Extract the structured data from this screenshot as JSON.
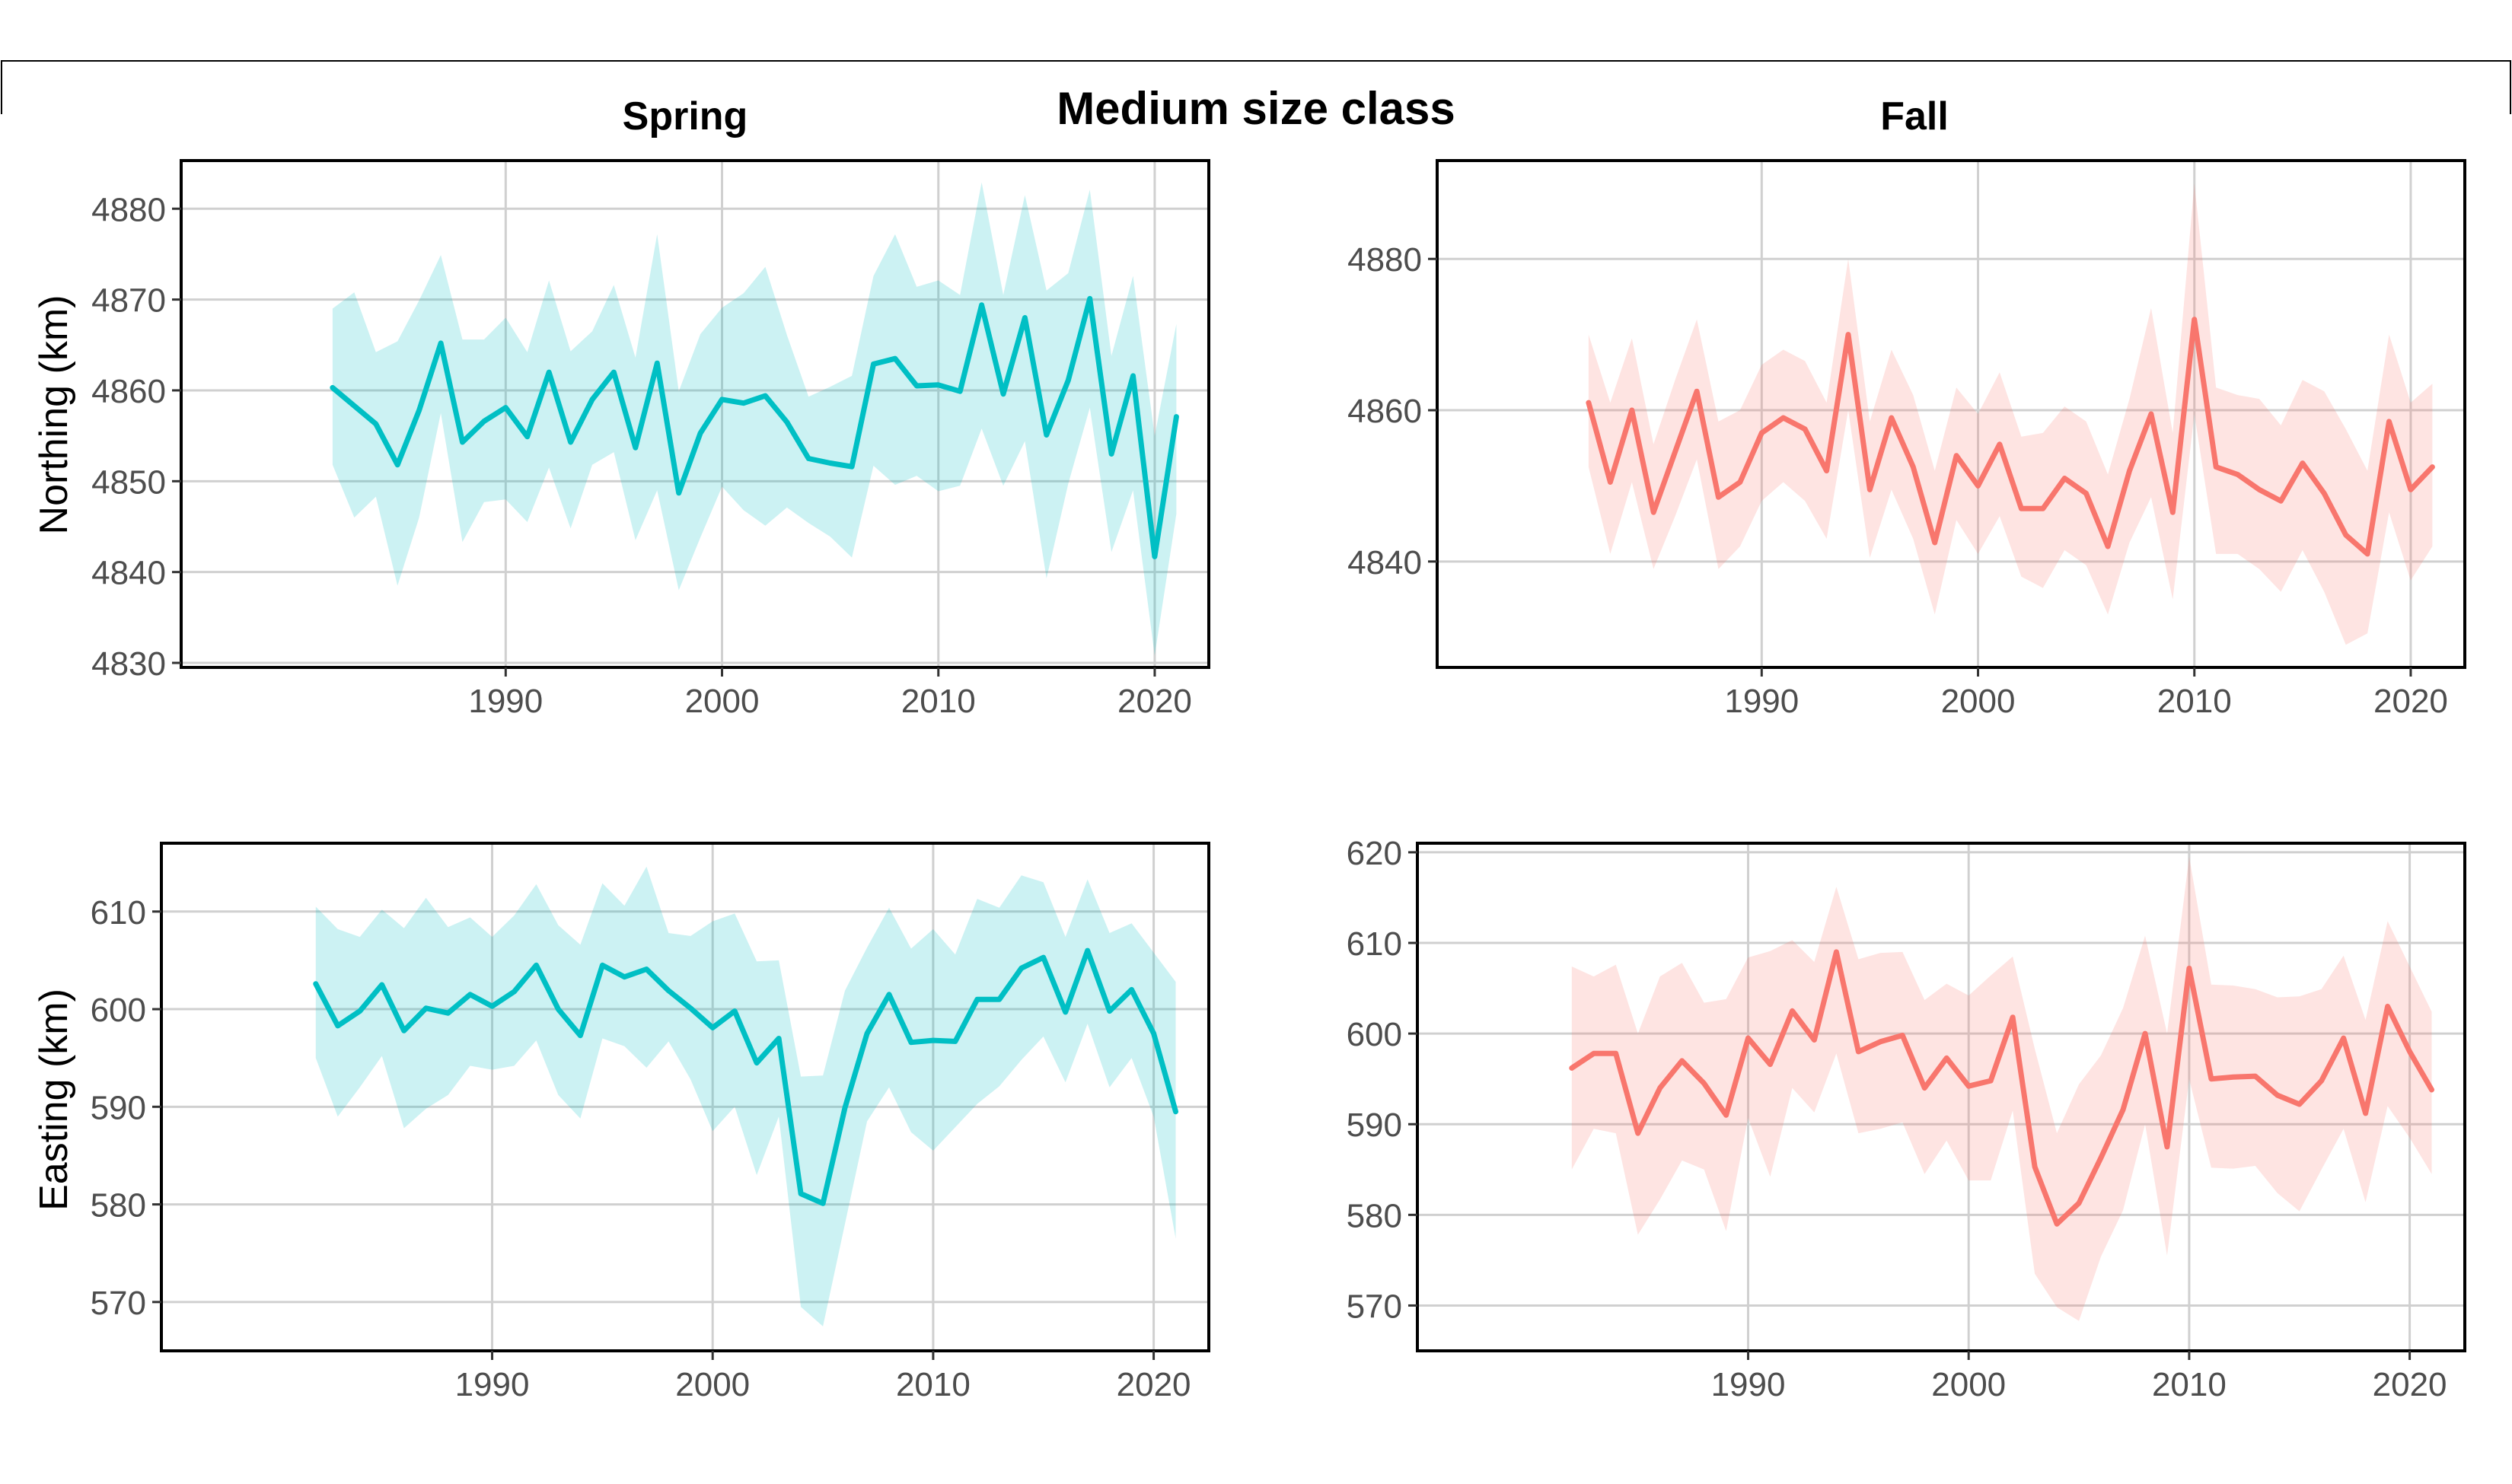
{
  "title": "Medium size class",
  "column_titles": [
    "Spring",
    "Fall"
  ],
  "row_labels": [
    "Northing (km)",
    "Easting (km)"
  ],
  "colors": {
    "spring": "#00BFC4",
    "fall": "#F8766D",
    "grid": "#d0d0d0",
    "frame": "#000000",
    "tick_text": "#4d4d4d"
  },
  "chart_data": [
    {
      "type": "line",
      "panel": "spring-northing",
      "xlabel": "",
      "ylabel": "Northing (km)",
      "x": [
        1982,
        1983,
        1984,
        1985,
        1986,
        1987,
        1988,
        1989,
        1990,
        1991,
        1992,
        1993,
        1994,
        1995,
        1996,
        1997,
        1998,
        1999,
        2000,
        2001,
        2002,
        2003,
        2004,
        2005,
        2006,
        2007,
        2008,
        2009,
        2010,
        2011,
        2012,
        2013,
        2014,
        2015,
        2016,
        2017,
        2018,
        2019,
        2020,
        2021
      ],
      "series": [
        {
          "values": [
            4860.3,
            4858.3,
            4856.3,
            4851.8,
            4857.8,
            4865.2,
            4854.3,
            4856.6,
            4858.1,
            4854.9,
            4862.0,
            4854.3,
            4859.0,
            4862.0,
            4853.7,
            4863.0,
            4848.7,
            4855.3,
            4859.0,
            4858.6,
            4859.4,
            4856.5,
            4852.5,
            4852.0,
            4851.6,
            4862.9,
            4863.5,
            4860.5,
            4860.6,
            4859.9,
            4869.4,
            4859.6,
            4868.0,
            4855.1,
            4861.1,
            4870.1,
            4853.0,
            4861.6,
            4841.7,
            4857.1
          ],
          "lower": [
            4851.8,
            4846.0,
            4848.3,
            4838.5,
            4846.0,
            4857.5,
            4843.3,
            4847.7,
            4848.0,
            4845.5,
            4851.5,
            4844.8,
            4851.8,
            4853.2,
            4843.5,
            4849.0,
            4838.0,
            4843.8,
            4849.4,
            4846.8,
            4845.1,
            4847.1,
            4845.4,
            4843.9,
            4841.6,
            4851.7,
            4849.6,
            4850.6,
            4848.9,
            4849.5,
            4855.8,
            4849.5,
            4854.4,
            4839.3,
            4849.7,
            4858.1,
            4842.2,
            4849.0,
            4830.8,
            4846.4
          ],
          "upper": [
            4869.0,
            4870.8,
            4864.2,
            4865.4,
            4869.9,
            4874.9,
            4865.6,
            4865.6,
            4868.0,
            4864.2,
            4872.1,
            4864.3,
            4866.5,
            4871.6,
            4863.6,
            4877.2,
            4859.9,
            4866.2,
            4869.1,
            4870.7,
            4873.6,
            4866.1,
            4859.3,
            4860.4,
            4861.6,
            4872.6,
            4877.2,
            4871.4,
            4872.1,
            4870.5,
            4882.9,
            4870.5,
            4881.5,
            4871.0,
            4872.9,
            4882.1,
            4863.8,
            4872.6,
            4855.0,
            4867.3
          ]
        }
      ],
      "xlim": [
        1975,
        2022.5
      ],
      "ylim": [
        4829.5,
        4885.3
      ],
      "xticks": [
        1990,
        2000,
        2010,
        2020
      ],
      "yticks": [
        4830,
        4840,
        4850,
        4860,
        4870,
        4880
      ],
      "grid": true
    },
    {
      "type": "line",
      "panel": "fall-northing",
      "xlabel": "",
      "ylabel": "",
      "x": [
        1982,
        1983,
        1984,
        1985,
        1986,
        1987,
        1988,
        1989,
        1990,
        1991,
        1992,
        1993,
        1994,
        1995,
        1996,
        1997,
        1998,
        1999,
        2000,
        2001,
        2002,
        2003,
        2004,
        2005,
        2006,
        2007,
        2008,
        2009,
        2010,
        2011,
        2012,
        2013,
        2014,
        2015,
        2016,
        2017,
        2018,
        2019,
        2020,
        2021
      ],
      "series": [
        {
          "values": [
            4861.0,
            4850.5,
            4860.0,
            4846.5,
            4854.5,
            4862.5,
            4848.5,
            4850.5,
            4857.0,
            4859.0,
            4857.5,
            4852.0,
            4870.0,
            4849.5,
            4859.0,
            4852.5,
            4842.5,
            4854.0,
            4850.0,
            4855.5,
            4847.0,
            4847.0,
            4851.0,
            4849.0,
            4842.0,
            4852.0,
            4859.5,
            4846.5,
            4872.0,
            4852.5,
            4851.5,
            4849.5,
            4848.0,
            4853.0,
            4849.0,
            4843.5,
            4841.0,
            4858.5,
            4849.5,
            4852.5
          ],
          "lower": [
            4852.5,
            4841.0,
            4850.5,
            4839.0,
            4846.0,
            4853.5,
            4839.0,
            4842.0,
            4848.0,
            4850.5,
            4848.0,
            4843.0,
            4860.0,
            4840.5,
            4849.5,
            4843.0,
            4833.0,
            4845.5,
            4841.0,
            4846.0,
            4838.0,
            4836.5,
            4841.5,
            4839.5,
            4833.0,
            4842.5,
            4848.5,
            4835.0,
            4859.5,
            4841.0,
            4841.0,
            4839.0,
            4836.0,
            4841.5,
            4836.0,
            4829.0,
            4830.5,
            4846.5,
            4837.5,
            4842.0
          ],
          "upper": [
            4870.0,
            4861.0,
            4869.5,
            4855.5,
            4864.0,
            4872.0,
            4858.5,
            4860.0,
            4866.0,
            4868.0,
            4866.5,
            4861.0,
            4880.0,
            4858.5,
            4868.0,
            4862.0,
            4852.0,
            4863.0,
            4859.5,
            4865.0,
            4856.5,
            4857.0,
            4860.5,
            4858.5,
            4851.5,
            4861.5,
            4873.5,
            4857.0,
            4890.0,
            4863.0,
            4862.0,
            4861.5,
            4858.0,
            4864.0,
            4862.5,
            4857.5,
            4852.0,
            4870.0,
            4861.0,
            4863.5
          ]
        }
      ],
      "xlim": [
        1975,
        2022.5
      ],
      "ylim": [
        4826,
        4893
      ],
      "xticks": [
        1990,
        2000,
        2010,
        2020
      ],
      "yticks": [
        4840,
        4860,
        4880
      ],
      "grid": true
    },
    {
      "type": "line",
      "panel": "spring-easting",
      "xlabel": "",
      "ylabel": "Easting (km)",
      "x": [
        1982,
        1983,
        1984,
        1985,
        1986,
        1987,
        1988,
        1989,
        1990,
        1991,
        1992,
        1993,
        1994,
        1995,
        1996,
        1997,
        1998,
        1999,
        2000,
        2001,
        2002,
        2003,
        2004,
        2005,
        2006,
        2007,
        2008,
        2009,
        2010,
        2011,
        2012,
        2013,
        2014,
        2015,
        2016,
        2017,
        2018,
        2019,
        2020,
        2021
      ],
      "series": [
        {
          "values": [
            602.6,
            598.3,
            599.8,
            602.5,
            597.8,
            600.1,
            599.6,
            601.5,
            600.3,
            601.8,
            604.5,
            600.0,
            597.3,
            604.5,
            603.3,
            604.1,
            601.9,
            600.1,
            598.1,
            599.8,
            594.5,
            597.0,
            581.1,
            580.1,
            589.9,
            597.5,
            601.5,
            596.6,
            596.8,
            596.7,
            601.0,
            601.0,
            604.2,
            605.3,
            599.7,
            606.0,
            599.8,
            602.0,
            597.5,
            589.5
          ],
          "lower": [
            595.0,
            589.0,
            592.0,
            595.2,
            587.8,
            589.8,
            591.2,
            594.2,
            593.8,
            594.2,
            596.8,
            591.2,
            588.8,
            597.0,
            596.2,
            594.0,
            596.7,
            592.8,
            587.5,
            590.0,
            583.0,
            589.0,
            569.5,
            567.5,
            578.0,
            588.5,
            592.0,
            587.4,
            585.5,
            587.9,
            590.3,
            592.1,
            594.8,
            597.2,
            592.5,
            598.5,
            592.0,
            595.0,
            589.0,
            576.5
          ],
          "upper": [
            610.5,
            608.2,
            607.4,
            610.2,
            608.3,
            611.4,
            608.4,
            609.4,
            607.4,
            609.6,
            612.8,
            608.6,
            606.6,
            612.9,
            610.6,
            614.6,
            607.8,
            607.5,
            609.0,
            609.8,
            604.9,
            605.0,
            593.1,
            593.2,
            601.9,
            606.3,
            610.4,
            606.2,
            608.2,
            605.6,
            611.3,
            610.4,
            613.7,
            613.0,
            607.4,
            613.3,
            607.8,
            608.8,
            605.8,
            602.8
          ]
        }
      ],
      "xlim": [
        1975,
        2022.5
      ],
      "ylim": [
        565,
        617
      ],
      "xticks": [
        1990,
        2000,
        2010,
        2020
      ],
      "yticks": [
        570,
        580,
        590,
        600,
        610
      ],
      "grid": true
    },
    {
      "type": "line",
      "panel": "fall-easting",
      "xlabel": "",
      "ylabel": "",
      "x": [
        1982,
        1983,
        1984,
        1985,
        1986,
        1987,
        1988,
        1989,
        1990,
        1991,
        1992,
        1993,
        1994,
        1995,
        1996,
        1997,
        1998,
        1999,
        2000,
        2001,
        2002,
        2003,
        2004,
        2005,
        2006,
        2007,
        2008,
        2009,
        2010,
        2011,
        2012,
        2013,
        2014,
        2015,
        2016,
        2017,
        2018,
        2019,
        2020,
        2021
      ],
      "series": [
        {
          "values": [
            596.2,
            597.8,
            597.8,
            589.0,
            594.0,
            597.0,
            594.5,
            591.0,
            599.5,
            596.6,
            602.5,
            599.3,
            609.0,
            598.0,
            599.1,
            599.8,
            594.0,
            597.3,
            594.2,
            594.8,
            601.8,
            585.3,
            579.0,
            581.3,
            586.3,
            591.6,
            600.0,
            587.5,
            607.2,
            595.0,
            595.2,
            595.3,
            593.2,
            592.2,
            594.8,
            599.5,
            591.2,
            603.0,
            598.0,
            593.8
          ],
          "lower": [
            585.0,
            589.5,
            589.0,
            577.8,
            581.7,
            586.0,
            585.0,
            578.2,
            590.7,
            584.2,
            594.0,
            591.3,
            597.8,
            589.0,
            589.5,
            590.2,
            584.5,
            588.2,
            583.8,
            583.8,
            591.5,
            573.5,
            569.8,
            568.3,
            575.4,
            580.5,
            590.0,
            575.5,
            595.0,
            585.2,
            585.1,
            585.4,
            582.4,
            580.4,
            585.0,
            589.5,
            581.4,
            592.0,
            588.5,
            584.5
          ],
          "upper": [
            607.4,
            606.3,
            607.6,
            600.0,
            606.3,
            607.8,
            603.4,
            603.8,
            608.4,
            609.1,
            610.3,
            607.9,
            616.2,
            608.2,
            608.9,
            609.0,
            603.7,
            605.5,
            604.2,
            606.4,
            608.5,
            598.3,
            589.0,
            594.4,
            597.6,
            602.8,
            610.8,
            600.0,
            619.5,
            605.4,
            605.3,
            604.9,
            604.0,
            604.1,
            604.9,
            608.6,
            601.5,
            612.4,
            607.4,
            602.4
          ]
        }
      ],
      "xlim": [
        1975,
        2022.5
      ],
      "ylim": [
        565,
        621
      ],
      "xticks": [
        1990,
        2000,
        2010,
        2020
      ],
      "yticks": [
        570,
        580,
        590,
        600,
        610,
        620
      ],
      "grid": true
    }
  ]
}
